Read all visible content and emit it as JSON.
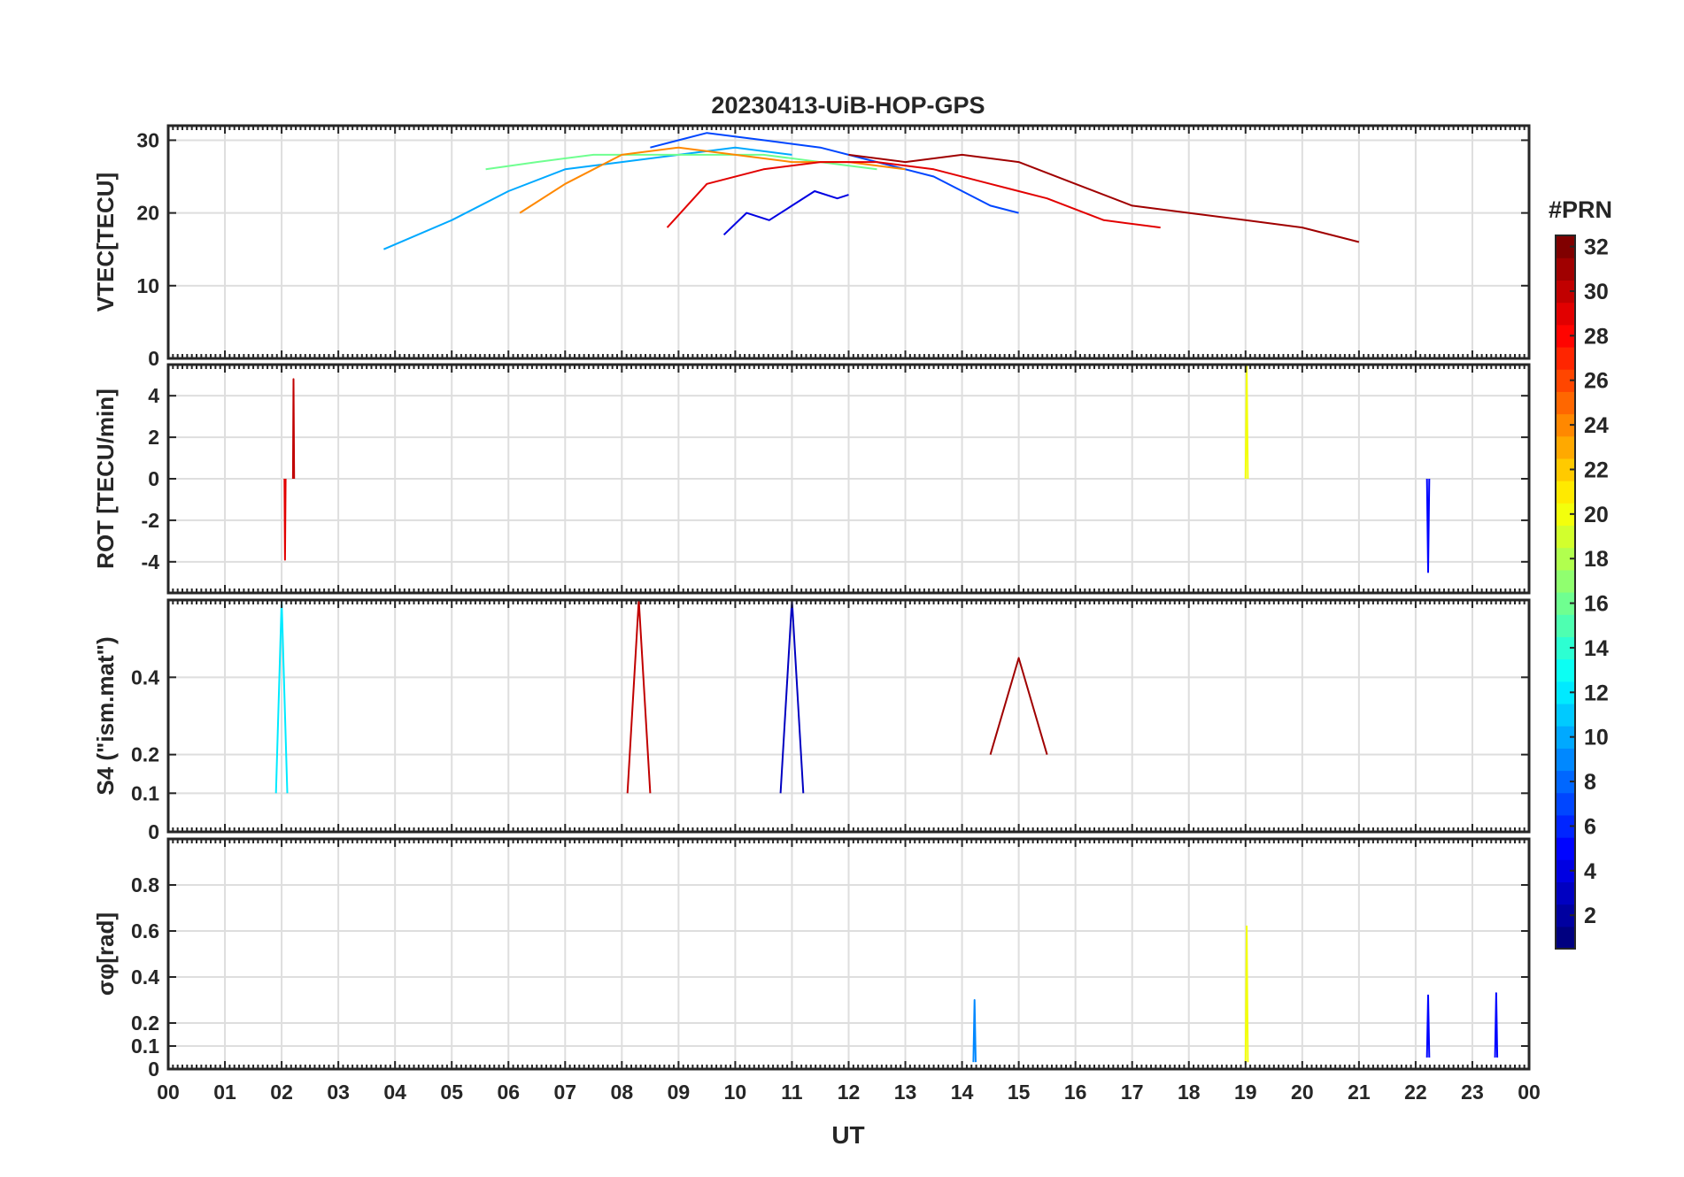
{
  "chart_data": {
    "type": "line",
    "title": "20230413-UiB-HOP-GPS",
    "xlabel": "UT",
    "x_ticks": [
      "00",
      "01",
      "02",
      "03",
      "04",
      "05",
      "06",
      "07",
      "08",
      "09",
      "10",
      "11",
      "12",
      "13",
      "14",
      "15",
      "16",
      "17",
      "18",
      "19",
      "20",
      "21",
      "22",
      "23",
      "00"
    ],
    "xlim": [
      0,
      24
    ],
    "grid": true,
    "colorbar": {
      "label": "#PRN",
      "range": [
        1,
        32
      ],
      "ticks": [
        2,
        4,
        6,
        8,
        10,
        12,
        14,
        16,
        18,
        20,
        22,
        24,
        26,
        28,
        30,
        32
      ],
      "colormap": "jet"
    },
    "panels": [
      {
        "id": "vtec",
        "ylabel": "VTEC[TECU]",
        "ylim": [
          0,
          32
        ],
        "yticks": [
          0,
          10,
          20,
          30
        ],
        "series": [
          {
            "prn": 4,
            "x": [
              9.8,
              10.2,
              10.6,
              11.0,
              11.4,
              11.8,
              12.0
            ],
            "y": [
              17,
              20,
              19,
              21,
              23,
              22,
              22.5
            ]
          },
          {
            "prn": 7,
            "x": [
              8.5,
              9.5,
              10.5,
              11.5,
              12.5,
              13.5,
              14.5,
              15.0
            ],
            "y": [
              29,
              31,
              30,
              29,
              27,
              25,
              21,
              20
            ]
          },
          {
            "prn": 10,
            "x": [
              3.8,
              5.0,
              6.0,
              7.0,
              8.0,
              9.0,
              10.0,
              11.0
            ],
            "y": [
              15,
              19,
              23,
              26,
              27,
              28,
              29,
              28
            ]
          },
          {
            "prn": 16,
            "x": [
              5.6,
              6.5,
              7.5,
              8.5,
              9.5,
              10.5,
              11.5,
              12.5
            ],
            "y": [
              26,
              27,
              28,
              28,
              28,
              28,
              27,
              26
            ]
          },
          {
            "prn": 24,
            "x": [
              6.2,
              7.0,
              8.0,
              9.0,
              10.0,
              11.0,
              12.0,
              13.0
            ],
            "y": [
              20,
              24,
              28,
              29,
              28,
              27,
              27,
              26
            ]
          },
          {
            "prn": 29,
            "x": [
              8.8,
              9.5,
              10.5,
              11.5,
              12.5,
              13.5,
              14.5,
              15.5,
              16.5,
              17.5
            ],
            "y": [
              18,
              24,
              26,
              27,
              27,
              26,
              24,
              22,
              19,
              18
            ]
          },
          {
            "prn": 31,
            "x": [
              12.0,
              13.0,
              14.0,
              15.0,
              16.0,
              17.0,
              18.0,
              19.0,
              20.0,
              21.0
            ],
            "y": [
              28,
              27,
              28,
              27,
              24,
              21,
              20,
              19,
              18,
              16
            ]
          }
        ]
      },
      {
        "id": "rot",
        "ylabel": "ROT [TECU/min]",
        "ylim": [
          -5.5,
          5.5
        ],
        "yticks": [
          -4,
          -2,
          0,
          2,
          4
        ],
        "series": [
          {
            "prn": 30,
            "x": [
              2.2,
              2.21,
              2.22
            ],
            "y": [
              0,
              4.8,
              0
            ]
          },
          {
            "prn": 29,
            "x": [
              2.05,
              2.06,
              2.07
            ],
            "y": [
              0,
              -3.9,
              0
            ]
          },
          {
            "prn": 20,
            "x": [
              19.0,
              19.02,
              19.04
            ],
            "y": [
              0,
              5.5,
              0
            ]
          },
          {
            "prn": 5,
            "x": [
              22.2,
              22.22,
              22.24
            ],
            "y": [
              0,
              -4.5,
              0
            ]
          }
        ]
      },
      {
        "id": "s4",
        "ylabel": "S4 (\"ism.mat\")",
        "ylim": [
          0,
          0.6
        ],
        "yticks": [
          0,
          0.1,
          0.2,
          0.4
        ],
        "series": [
          {
            "prn": 3,
            "x": [
              10.8,
              11.0,
              11.2
            ],
            "y": [
              0.1,
              0.6,
              0.1
            ]
          },
          {
            "prn": 30,
            "x": [
              8.1,
              8.3,
              8.5
            ],
            "y": [
              0.1,
              0.6,
              0.1
            ]
          },
          {
            "prn": 12,
            "x": [
              1.9,
              2.0,
              2.1
            ],
            "y": [
              0.1,
              0.6,
              0.1
            ]
          },
          {
            "prn": 31,
            "x": [
              14.5,
              15.0,
              15.5
            ],
            "y": [
              0.2,
              0.45,
              0.2
            ]
          }
        ]
      },
      {
        "id": "sigma",
        "ylabel": "σφ[rad]",
        "ylim": [
          0,
          1.0
        ],
        "yticks": [
          0,
          0.1,
          0.2,
          0.4,
          0.6,
          0.8
        ],
        "series": [
          {
            "prn": 20,
            "x": [
              19.0,
              19.02,
              19.04
            ],
            "y": [
              0.03,
              0.62,
              0.03
            ]
          },
          {
            "prn": 9,
            "x": [
              14.2,
              14.22,
              14.24
            ],
            "y": [
              0.03,
              0.3,
              0.03
            ]
          },
          {
            "prn": 5,
            "x": [
              22.2,
              22.22,
              22.24
            ],
            "y": [
              0.05,
              0.32,
              0.05
            ]
          },
          {
            "prn": 5,
            "x": [
              23.4,
              23.42,
              23.44
            ],
            "y": [
              0.05,
              0.33,
              0.05
            ]
          }
        ]
      }
    ]
  }
}
